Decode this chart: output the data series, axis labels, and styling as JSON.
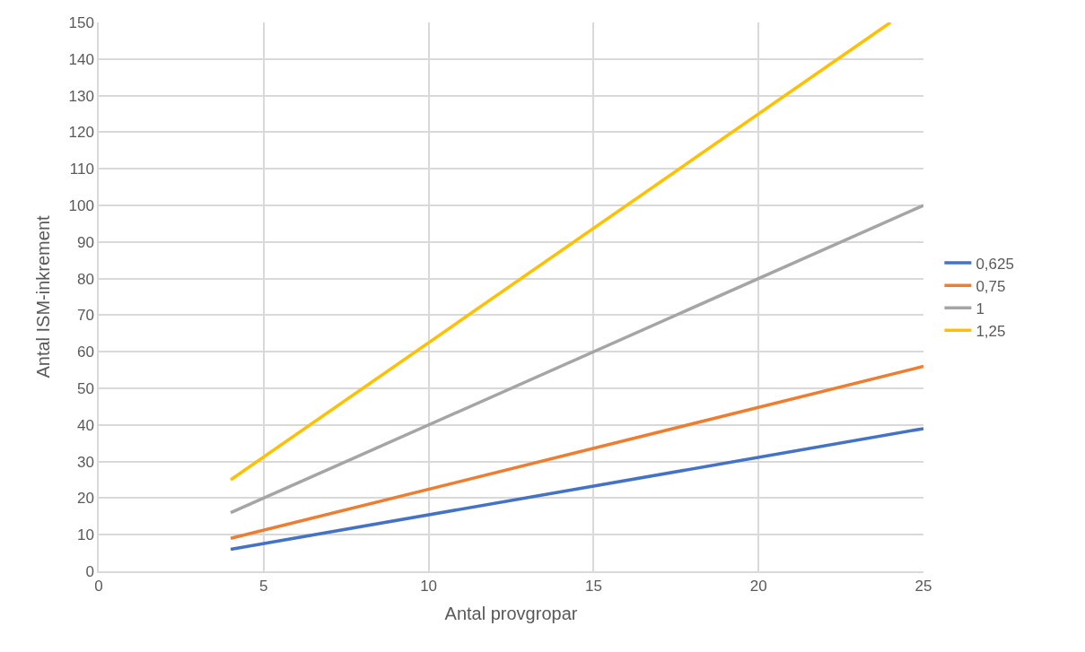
{
  "chart_data": {
    "type": "line",
    "xlabel": "Antal provgropar",
    "ylabel": "Antal ISM-inkrement",
    "xlim": [
      0,
      25
    ],
    "xticks": [
      0,
      5,
      10,
      15,
      20,
      25
    ],
    "ylim": [
      0,
      150
    ],
    "yticks": [
      0,
      10,
      20,
      30,
      40,
      50,
      60,
      70,
      80,
      90,
      100,
      110,
      120,
      130,
      140,
      150
    ],
    "grid": true,
    "legend": "right",
    "marker": "none",
    "line_style": "solid",
    "series": [
      {
        "name": "0,625",
        "color": "#4472c4",
        "x": [
          4,
          25
        ],
        "values": [
          6,
          39
        ]
      },
      {
        "name": "0,75",
        "color": "#ed7d31",
        "x": [
          4,
          25
        ],
        "values": [
          9,
          56
        ]
      },
      {
        "name": "1",
        "color": "#a5a5a5",
        "x": [
          4,
          25
        ],
        "values": [
          16,
          100
        ]
      },
      {
        "name": "1,25",
        "color": "#ffc000",
        "x": [
          4,
          24
        ],
        "values": [
          25,
          150
        ]
      }
    ]
  }
}
